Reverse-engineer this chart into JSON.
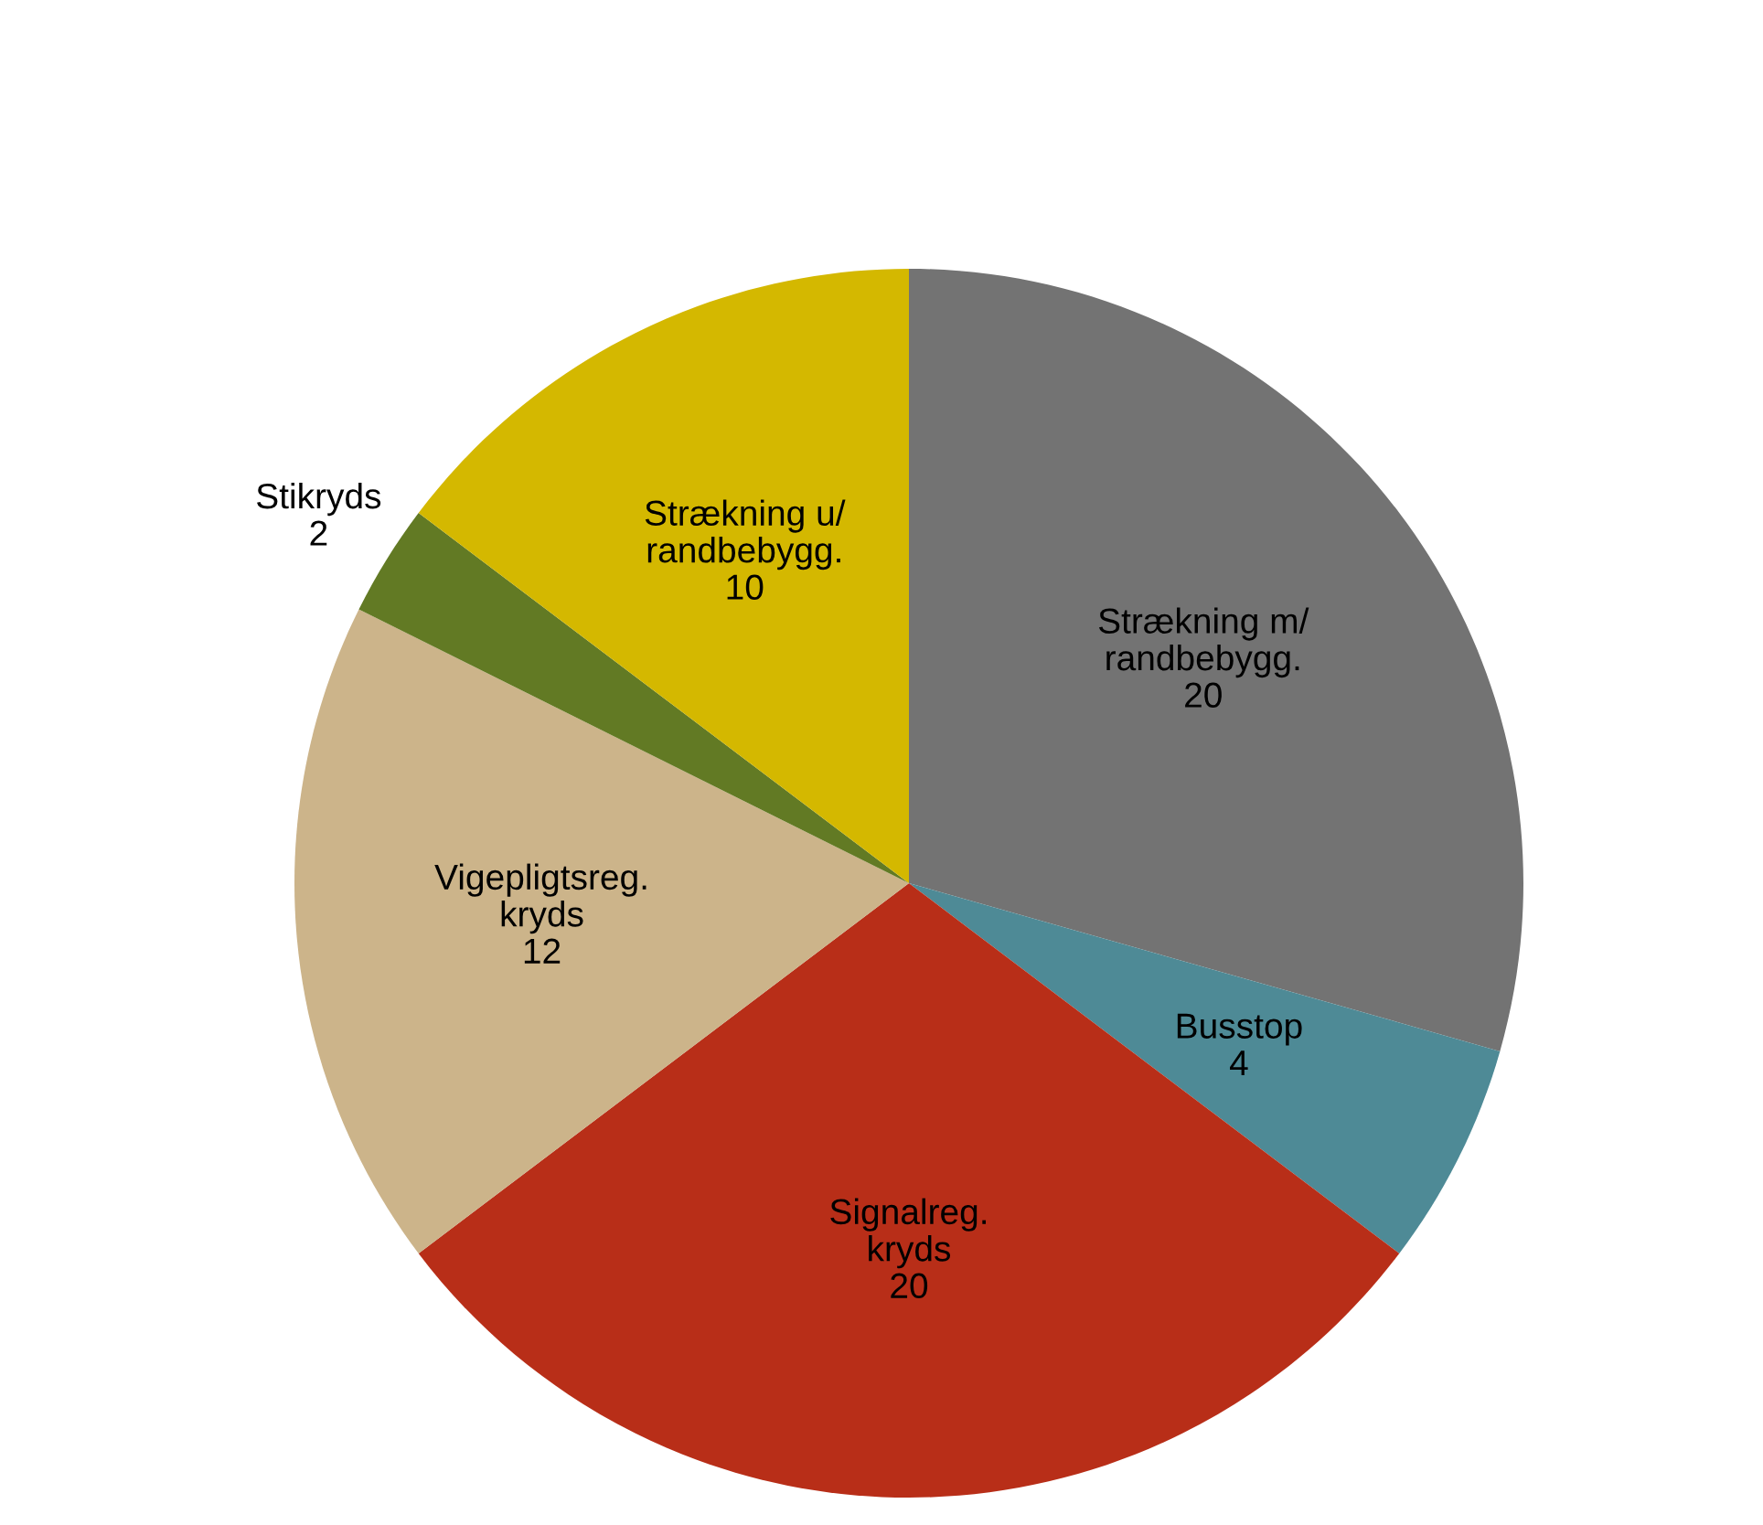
{
  "chart_data": {
    "type": "pie",
    "categories": [
      "Strækning m/\nrandbebygg.",
      "Busstop",
      "Signalreg.\nkryds",
      "Vigepligtsreg.\nkryds",
      "Stikryds",
      "Strækning u/\nrandbebygg."
    ],
    "values": [
      20,
      4,
      20,
      12,
      2,
      10
    ],
    "colors": [
      "#737373",
      "#4e8a96",
      "#b82e18",
      "#ccb48a",
      "#627a24",
      "#d4b800"
    ],
    "data_labels": true,
    "legend": false
  }
}
